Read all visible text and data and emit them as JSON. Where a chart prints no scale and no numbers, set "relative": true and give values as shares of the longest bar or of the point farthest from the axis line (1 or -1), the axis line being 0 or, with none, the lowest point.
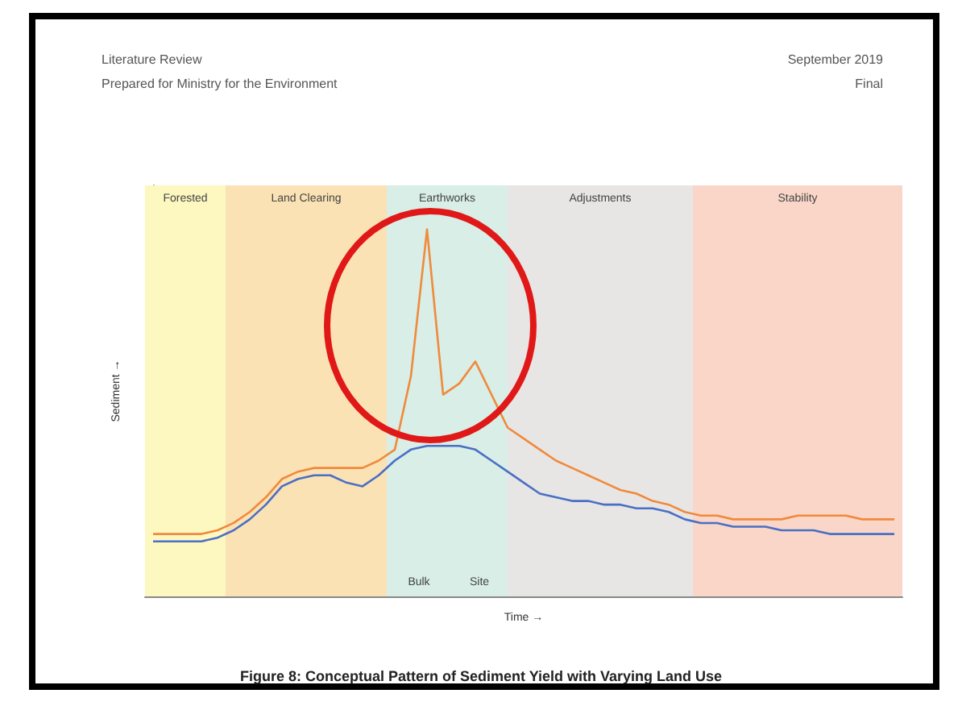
{
  "chart_data": {
    "type": "line",
    "title": "Figure 8: Conceptual Pattern of Sediment Yield with Varying Land Use",
    "xlabel": "Time →",
    "ylabel": "Sediment →",
    "annotations": [
      "Literature Review",
      "Prepared for Ministry for the Environment",
      "September 2019",
      "Final",
      "Forested",
      "Land Clearing",
      "Earthworks",
      "Adjustments",
      "Stability",
      "Bulk",
      "Site"
    ],
    "relative": true,
    "tick_labels": false,
    "grid": false,
    "marker": "none",
    "line_style": "solid",
    "categories": [
      null,
      null,
      null,
      null,
      null,
      null,
      null,
      null,
      null,
      null,
      null,
      null,
      null,
      null,
      null,
      null,
      null,
      null,
      null,
      null,
      null,
      null,
      null,
      null,
      null,
      null,
      null,
      null,
      null,
      null,
      null,
      null,
      null,
      null,
      null,
      null,
      null,
      null,
      null,
      null,
      null,
      null,
      null,
      null,
      null,
      null,
      null
    ],
    "series": [
      {
        "color": "#f08a3c",
        "values": [
          0.17,
          0.17,
          0.17,
          0.17,
          0.18,
          0.2,
          0.23,
          0.27,
          0.32,
          0.34,
          0.35,
          0.35,
          0.35,
          0.35,
          0.37,
          0.4,
          0.6,
          1,
          0.55,
          0.58,
          0.64,
          0.55,
          0.46,
          0.43,
          0.4,
          0.37,
          0.35,
          0.33,
          0.31,
          0.29,
          0.28,
          0.26,
          0.25,
          0.23,
          0.22,
          0.22,
          0.21,
          0.21,
          0.21,
          0.21,
          0.22,
          0.22,
          0.22,
          0.22,
          0.21,
          0.21,
          0.21
        ]
      },
      {
        "color": "#4a6fc4",
        "values": [
          0.15,
          0.15,
          0.15,
          0.15,
          0.16,
          0.18,
          0.21,
          0.25,
          0.3,
          0.32,
          0.33,
          0.33,
          0.31,
          0.3,
          0.33,
          0.37,
          0.4,
          0.41,
          0.41,
          0.41,
          0.4,
          0.37,
          0.34,
          0.31,
          0.28,
          0.27,
          0.26,
          0.26,
          0.25,
          0.25,
          0.24,
          0.24,
          0.23,
          0.21,
          0.2,
          0.2,
          0.19,
          0.19,
          0.19,
          0.18,
          0.18,
          0.18,
          0.17,
          0.17,
          0.17,
          0.17,
          0.17
        ]
      }
    ]
  }
}
